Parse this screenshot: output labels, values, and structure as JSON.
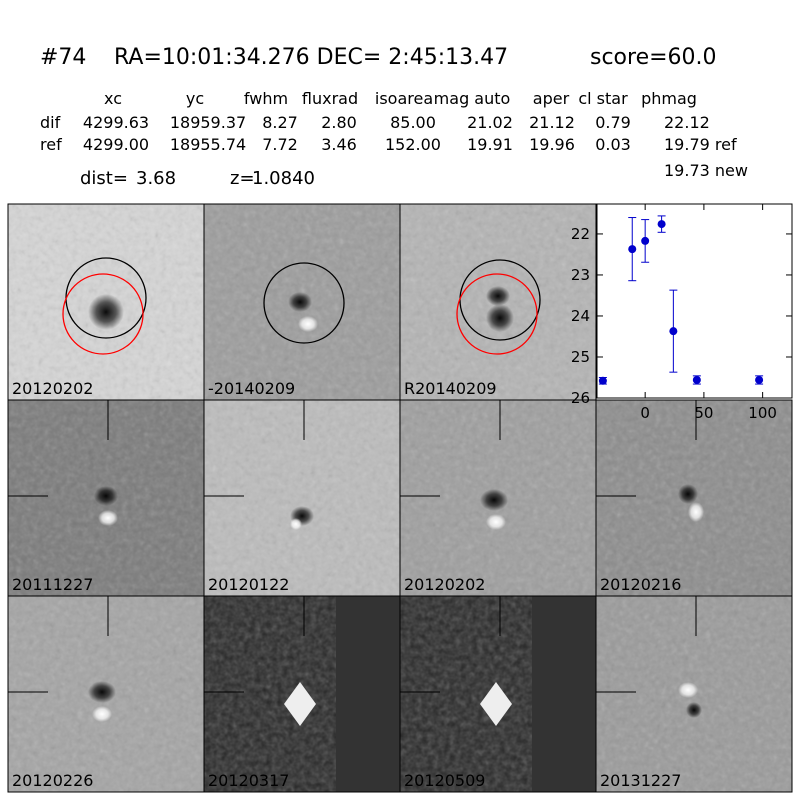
{
  "header": {
    "id": "#74",
    "coords": "RA=10:01:34.276 DEC= 2:45:13.47",
    "score": "score=60.0"
  },
  "table": {
    "columns": [
      "xc",
      "yc",
      "fwhm",
      "fluxrad",
      "isoarea",
      "mag auto",
      "aper",
      "cl star",
      "phmag"
    ],
    "rows": [
      {
        "label": "dif",
        "cells": [
          "4299.63",
          "18959.37",
          "8.27",
          "2.80",
          "85.00",
          "21.02",
          "21.12",
          "0.79",
          "22.12"
        ]
      },
      {
        "label": "ref",
        "cells": [
          "4299.00",
          "18955.74",
          "7.72",
          "3.46",
          "152.00",
          "19.91",
          "19.96",
          "0.03",
          "19.79 ref"
        ]
      }
    ],
    "extra": "19.73 new"
  },
  "info": [
    {
      "label": "dist=",
      "value": "3.68"
    },
    {
      "label": "z=",
      "value": "1.0840"
    }
  ],
  "stamps": [
    {
      "label": "20120202",
      "label_color": "#000000"
    },
    {
      "label": "-20140209",
      "label_color": "#000000"
    },
    {
      "label": "R20140209",
      "label_color": "#000000"
    },
    {
      "label": "20111227",
      "label_color": "#000000"
    },
    {
      "label": "20120122",
      "label_color": "#000000"
    },
    {
      "label": "20120202",
      "label_color": "#ff0000"
    },
    {
      "label": "20120216",
      "label_color": "#000000"
    },
    {
      "label": "20120226",
      "label_color": "#000000"
    },
    {
      "label": "20120317",
      "label_color": "#000000"
    },
    {
      "label": "20120509",
      "label_color": "#000000"
    },
    {
      "label": "20131227",
      "label_color": "#000000"
    }
  ],
  "chart_data": {
    "type": "scatter",
    "x": [
      -36,
      -11,
      0,
      14,
      24,
      44,
      97
    ],
    "values": [
      25.58,
      22.37,
      22.17,
      21.76,
      24.37,
      25.56,
      25.56
    ],
    "errors": [
      0.08,
      0.77,
      0.52,
      0.2,
      1.0,
      0.1,
      0.1
    ],
    "color": "#0000cc",
    "xlim": [
      -41,
      125
    ],
    "ylim": [
      26,
      21.27
    ],
    "xticks": [
      0,
      50,
      100
    ],
    "yticks": [
      22,
      23,
      24,
      25,
      26
    ]
  }
}
